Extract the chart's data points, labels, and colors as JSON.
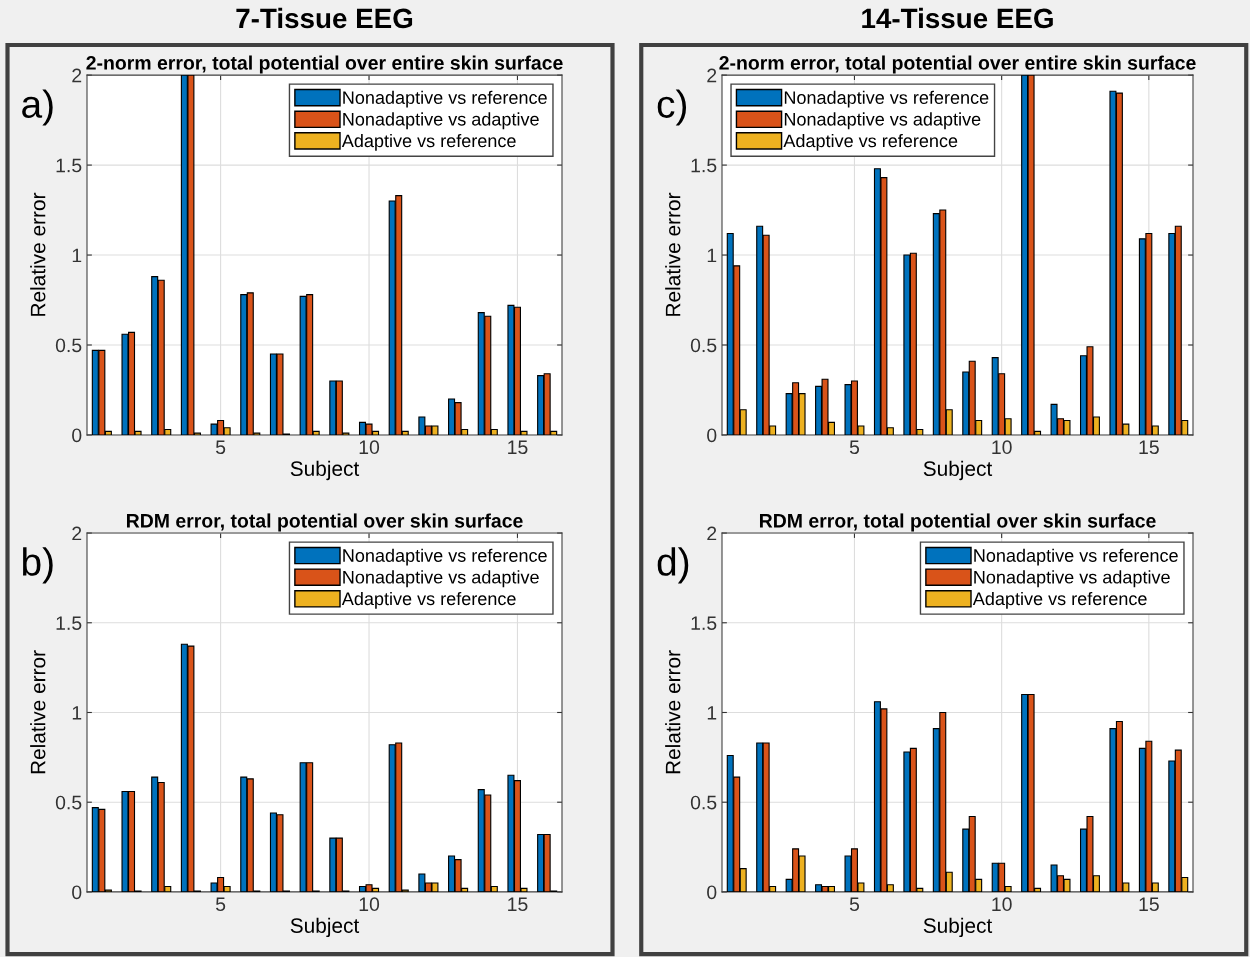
{
  "chart_data": [
    {
      "type": "bar",
      "title": "2-norm error, total potential over entire skin surface",
      "xlabel": "Subject",
      "ylabel": "Relative error",
      "annotations": [
        "7-Tissue EEG",
        "a)"
      ],
      "x": [
        1,
        2,
        3,
        4,
        5,
        6,
        7,
        8,
        9,
        10,
        11,
        12,
        13,
        14,
        15,
        16
      ],
      "xlim": [
        0.5,
        16.5
      ],
      "xticks": [
        5,
        10,
        15
      ],
      "ylim": [
        0,
        2
      ],
      "yticks": [
        0,
        0.5,
        1,
        1.5,
        2
      ],
      "grid": true,
      "legend": "top right",
      "series": [
        {
          "name": "Nonadaptive vs reference",
          "color": "#0072bd",
          "values": [
            0.47,
            0.56,
            0.88,
            2,
            0.06,
            0.78,
            0.45,
            0.77,
            0.3,
            0.07,
            1.3,
            0.1,
            0.2,
            0.68,
            0.72,
            0.33
          ]
        },
        {
          "name": "Nonadaptive vs adaptive",
          "color": "#d95319",
          "values": [
            0.47,
            0.57,
            0.86,
            2,
            0.08,
            0.79,
            0.45,
            0.78,
            0.3,
            0.06,
            1.33,
            0.05,
            0.18,
            0.66,
            0.71,
            0.34
          ]
        },
        {
          "name": "Adaptive vs reference",
          "color": "#edb120",
          "values": [
            0.02,
            0.02,
            0.03,
            0.01,
            0.04,
            0.01,
            0.005,
            0.02,
            0.01,
            0.02,
            0.02,
            0.05,
            0.03,
            0.03,
            0.02,
            0.02
          ]
        }
      ]
    },
    {
      "type": "bar",
      "title": "2-norm error, total potential over entire skin surface",
      "xlabel": "Subject",
      "ylabel": "Relative error",
      "annotations": [
        "14-Tissue EEG",
        "c)"
      ],
      "x": [
        1,
        2,
        3,
        4,
        5,
        6,
        7,
        8,
        9,
        10,
        11,
        12,
        13,
        14,
        15,
        16
      ],
      "xlim": [
        0.5,
        16.5
      ],
      "xticks": [
        5,
        10,
        15
      ],
      "ylim": [
        0,
        2
      ],
      "yticks": [
        0,
        0.5,
        1,
        1.5,
        2
      ],
      "grid": true,
      "legend": "top left",
      "series": [
        {
          "name": "Nonadaptive vs reference",
          "color": "#0072bd",
          "values": [
            1.12,
            1.16,
            0.23,
            0.27,
            0.28,
            1.48,
            1.0,
            1.23,
            0.35,
            0.43,
            2,
            0.17,
            0.44,
            1.91,
            1.09,
            1.12
          ]
        },
        {
          "name": "Nonadaptive vs adaptive",
          "color": "#d95319",
          "values": [
            0.94,
            1.11,
            0.29,
            0.31,
            0.3,
            1.43,
            1.01,
            1.25,
            0.41,
            0.34,
            2,
            0.09,
            0.49,
            1.9,
            1.12,
            1.16
          ]
        },
        {
          "name": "Adaptive vs reference",
          "color": "#edb120",
          "values": [
            0.14,
            0.05,
            0.23,
            0.07,
            0.05,
            0.04,
            0.03,
            0.14,
            0.08,
            0.09,
            0.02,
            0.08,
            0.1,
            0.06,
            0.05,
            0.08
          ]
        }
      ]
    },
    {
      "type": "bar",
      "title": "RDM error, total potential over skin surface",
      "xlabel": "Subject",
      "ylabel": "Relative error",
      "annotations": [
        "b)"
      ],
      "x": [
        1,
        2,
        3,
        4,
        5,
        6,
        7,
        8,
        9,
        10,
        11,
        12,
        13,
        14,
        15,
        16
      ],
      "xlim": [
        0.5,
        16.5
      ],
      "xticks": [
        5,
        10,
        15
      ],
      "ylim": [
        0,
        2
      ],
      "yticks": [
        0,
        0.5,
        1,
        1.5,
        2
      ],
      "grid": true,
      "legend": "top right",
      "series": [
        {
          "name": "Nonadaptive vs reference",
          "color": "#0072bd",
          "values": [
            0.47,
            0.56,
            0.64,
            1.38,
            0.05,
            0.64,
            0.44,
            0.72,
            0.3,
            0.03,
            0.82,
            0.1,
            0.2,
            0.57,
            0.65,
            0.32
          ]
        },
        {
          "name": "Nonadaptive vs adaptive",
          "color": "#d95319",
          "values": [
            0.46,
            0.56,
            0.61,
            1.37,
            0.08,
            0.63,
            0.43,
            0.72,
            0.3,
            0.04,
            0.83,
            0.05,
            0.18,
            0.54,
            0.62,
            0.32
          ]
        },
        {
          "name": "Adaptive vs reference",
          "color": "#edb120",
          "values": [
            0.01,
            0.005,
            0.03,
            0.005,
            0.03,
            0.005,
            0.005,
            0.005,
            0.005,
            0.02,
            0.01,
            0.05,
            0.02,
            0.03,
            0.02,
            0.005
          ]
        }
      ]
    },
    {
      "type": "bar",
      "title": "RDM error, total potential over skin surface",
      "xlabel": "Subject",
      "ylabel": "Relative error",
      "annotations": [
        "d)"
      ],
      "x": [
        1,
        2,
        3,
        4,
        5,
        6,
        7,
        8,
        9,
        10,
        11,
        12,
        13,
        14,
        15,
        16
      ],
      "xlim": [
        0.5,
        16.5
      ],
      "xticks": [
        5,
        10,
        15
      ],
      "ylim": [
        0,
        2
      ],
      "yticks": [
        0,
        0.5,
        1,
        1.5,
        2
      ],
      "grid": true,
      "legend": "top right",
      "series": [
        {
          "name": "Nonadaptive vs reference",
          "color": "#0072bd",
          "values": [
            0.76,
            0.83,
            0.07,
            0.04,
            0.2,
            1.06,
            0.78,
            0.91,
            0.35,
            0.16,
            1.1,
            0.15,
            0.35,
            0.91,
            0.8,
            0.73
          ]
        },
        {
          "name": "Nonadaptive vs adaptive",
          "color": "#d95319",
          "values": [
            0.64,
            0.83,
            0.24,
            0.03,
            0.24,
            1.02,
            0.8,
            1.0,
            0.42,
            0.16,
            1.1,
            0.09,
            0.42,
            0.95,
            0.84,
            0.79
          ]
        },
        {
          "name": "Adaptive vs reference",
          "color": "#edb120",
          "values": [
            0.13,
            0.03,
            0.2,
            0.03,
            0.05,
            0.04,
            0.02,
            0.11,
            0.07,
            0.03,
            0.02,
            0.07,
            0.09,
            0.05,
            0.05,
            0.08
          ]
        }
      ]
    }
  ]
}
